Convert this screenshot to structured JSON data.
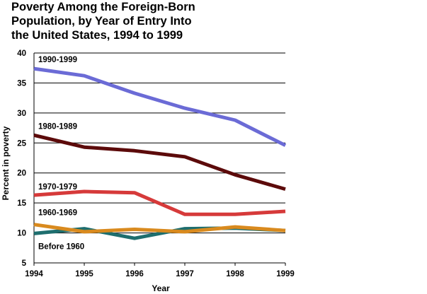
{
  "chart_data": {
    "type": "line",
    "title_lines": [
      "Poverty Among the Foreign-Born",
      "Population, by Year of Entry Into",
      "the United States, 1994 to 1999"
    ],
    "xlabel": "Year",
    "ylabel": "Percent in poverty",
    "categories": [
      "1994",
      "1995",
      "1996",
      "1997",
      "1998",
      "1999"
    ],
    "ylim": [
      5,
      40
    ],
    "yticks": [
      5,
      10,
      15,
      20,
      25,
      30,
      35,
      40
    ],
    "grid": "horizontal",
    "series": [
      {
        "name": "1990-1999",
        "color": "#6b6bd6",
        "values": [
          37.4,
          36.2,
          33.3,
          30.8,
          28.8,
          24.6
        ]
      },
      {
        "name": "1980-1989",
        "color": "#5c0a0a",
        "values": [
          26.3,
          24.3,
          23.7,
          22.7,
          19.7,
          17.3
        ]
      },
      {
        "name": "1970-1979",
        "color": "#d63a3a",
        "values": [
          16.3,
          16.9,
          16.7,
          13.1,
          13.1,
          13.6
        ]
      },
      {
        "name": "1960-1969",
        "color": "#d98a1e",
        "values": [
          11.4,
          10.2,
          10.6,
          10.2,
          11.0,
          10.4
        ]
      },
      {
        "name": "Before 1960",
        "color": "#1e6e6e",
        "values": [
          9.9,
          10.7,
          9.1,
          10.7,
          10.8,
          10.4
        ]
      }
    ]
  }
}
